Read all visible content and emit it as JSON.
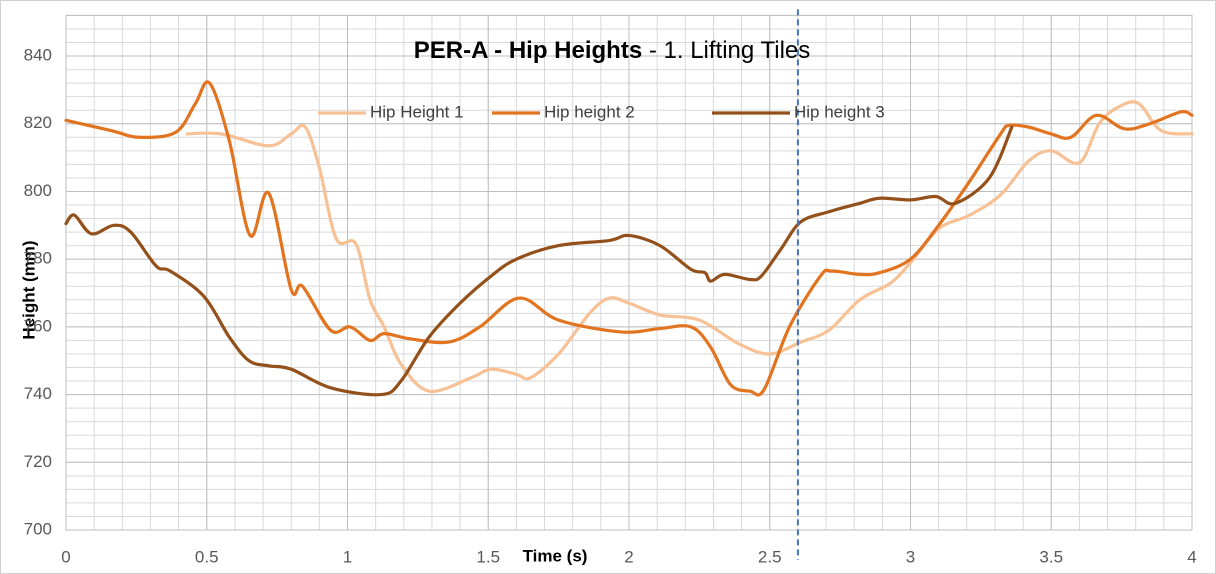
{
  "chart_data": {
    "type": "line",
    "title": "PER-A - Hip Heights",
    "subtitle": "- 1. Lifting Tiles",
    "xlabel": "Time (s)",
    "ylabel": "Height (mm)",
    "xlim": [
      0,
      4
    ],
    "ylim": [
      700,
      852
    ],
    "xticks": [
      0,
      0.5,
      1,
      1.5,
      2,
      2.5,
      3,
      3.5,
      4
    ],
    "yticks": [
      700,
      720,
      740,
      760,
      780,
      800,
      820,
      840
    ],
    "grid": true,
    "minor_grid": {
      "x": 0.1,
      "y": 4
    },
    "legend": "top",
    "vline": {
      "x": 2.6,
      "color": "#4472c4"
    },
    "series": [
      {
        "name": "Hip Height 1",
        "color": "#f7c195",
        "x": [
          0.43,
          0.55,
          0.72,
          0.8,
          0.85,
          0.9,
          0.96,
          1.03,
          1.08,
          1.13,
          1.19,
          1.29,
          1.44,
          1.51,
          1.6,
          1.65,
          1.75,
          1.86,
          1.93,
          2.0,
          2.11,
          2.25,
          2.39,
          2.5,
          2.61,
          2.71,
          2.82,
          2.93,
          3.0,
          3.1,
          3.21,
          3.32,
          3.42,
          3.5,
          3.6,
          3.67,
          3.74,
          3.81,
          3.89,
          4.0
        ],
        "values": [
          817,
          817,
          813.5,
          817,
          819,
          807,
          786,
          784.5,
          768,
          760,
          749,
          741,
          745,
          747.5,
          746,
          745,
          752,
          764,
          768.5,
          767,
          763.5,
          762,
          755,
          752,
          755.5,
          759,
          768,
          773,
          779,
          789,
          793,
          799,
          809,
          812,
          808.5,
          820,
          825,
          826,
          818,
          817
        ]
      },
      {
        "name": "Hip height 2",
        "color": "#e2731f",
        "x": [
          0,
          0.16,
          0.26,
          0.39,
          0.46,
          0.51,
          0.58,
          0.654,
          0.72,
          0.8,
          0.84,
          0.94,
          1.01,
          1.08,
          1.13,
          1.22,
          1.36,
          1.47,
          1.61,
          1.75,
          1.97,
          2.11,
          2.22,
          2.29,
          2.36,
          2.43,
          2.48,
          2.57,
          2.68,
          2.72,
          2.82,
          2.89,
          3.0,
          3.1,
          3.21,
          3.32,
          3.35,
          3.42,
          3.5,
          3.57,
          3.66,
          3.76,
          3.85,
          3.96,
          4.0
        ],
        "values": [
          821,
          818,
          816,
          817.5,
          826,
          832,
          815,
          787,
          799.5,
          771,
          772,
          759,
          760,
          756,
          758,
          756.5,
          755.5,
          760,
          768.5,
          762,
          758.5,
          759.5,
          760,
          754,
          743,
          741,
          741.5,
          760,
          775,
          776.5,
          775.5,
          776,
          780,
          790,
          803,
          817,
          819.5,
          819,
          817,
          816,
          822.5,
          818.5,
          820,
          823.5,
          822.5
        ]
      },
      {
        "name": "Hip height 3",
        "color": "#93501a",
        "x": [
          0,
          0.03,
          0.09,
          0.17,
          0.23,
          0.32,
          0.37,
          0.49,
          0.58,
          0.65,
          0.72,
          0.8,
          0.94,
          1.12,
          1.19,
          1.29,
          1.4,
          1.51,
          1.6,
          1.75,
          1.93,
          2.0,
          2.11,
          2.22,
          2.27,
          2.29,
          2.34,
          2.43,
          2.47,
          2.54,
          2.61,
          2.71,
          2.82,
          2.89,
          3.0,
          3.09,
          3.16,
          3.28,
          3.36
        ],
        "values": [
          790.5,
          793,
          787.5,
          790,
          788,
          778,
          776.5,
          769,
          757,
          750,
          748.5,
          747.5,
          742,
          740,
          744,
          757,
          767,
          775,
          780,
          784,
          785.5,
          787,
          784,
          777,
          776,
          773.5,
          775.5,
          774,
          775,
          783,
          791,
          794,
          796.5,
          798,
          797.5,
          798.5,
          796.5,
          804,
          819
        ]
      }
    ]
  }
}
